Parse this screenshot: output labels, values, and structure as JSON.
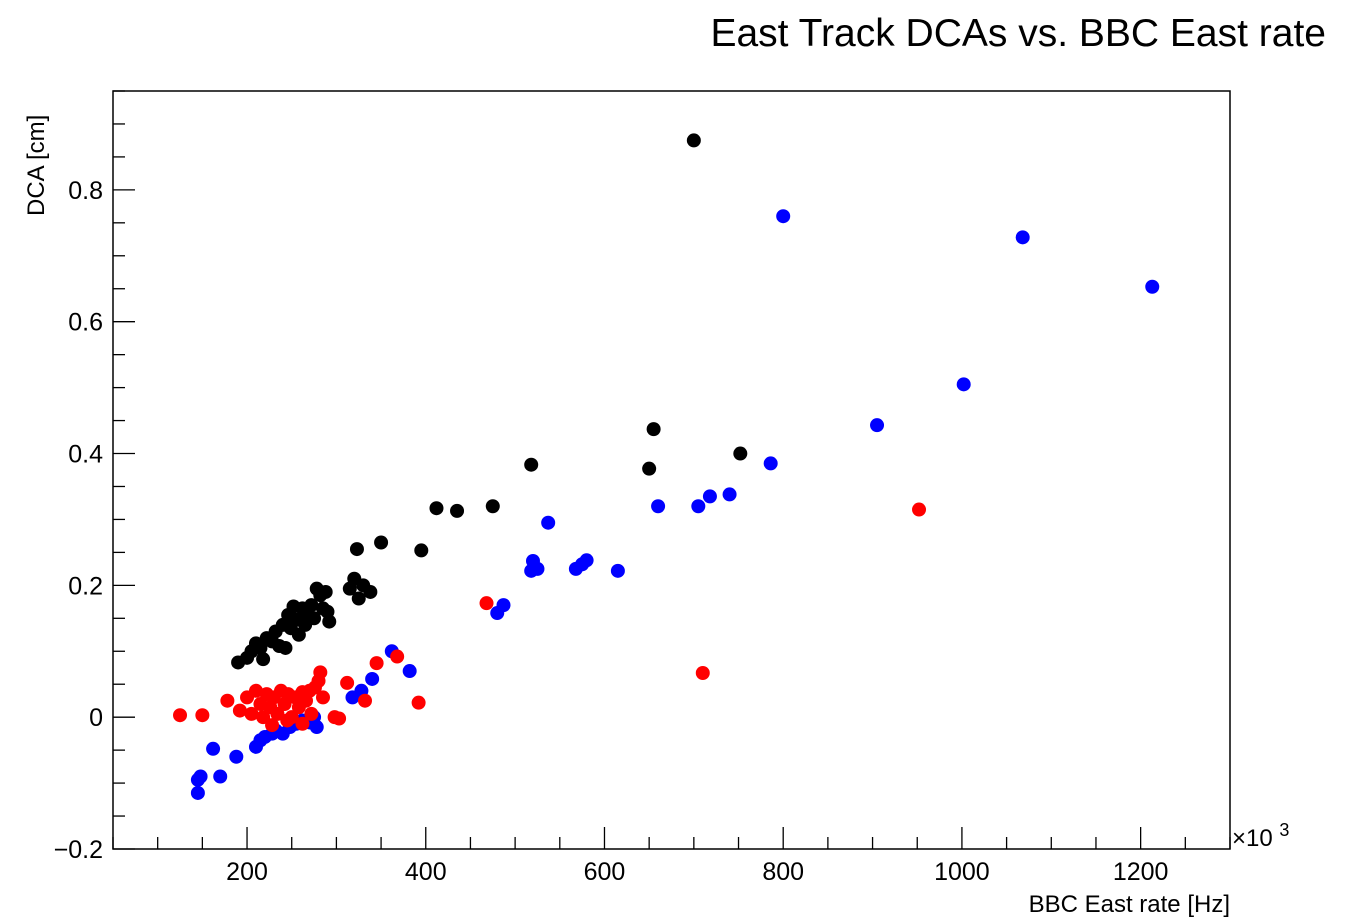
{
  "chart_data": {
    "type": "scatter",
    "title": "East Track DCAs vs. BBC East rate",
    "xlabel": "BBC East rate [Hz]",
    "ylabel": "DCA [cm]",
    "x_multiplier_label": "×10",
    "x_multiplier_exponent": "3",
    "xlim": [
      50,
      1300
    ],
    "ylim": [
      -0.2,
      0.95
    ],
    "x_ticks": [
      200,
      400,
      600,
      800,
      1000,
      1200
    ],
    "x_tick_labels": [
      "200",
      "400",
      "600",
      "800",
      "1000",
      "1200"
    ],
    "y_ticks": [
      -0.2,
      0,
      0.2,
      0.4,
      0.6,
      0.8
    ],
    "y_tick_labels": [
      "−0.2",
      "0",
      "0.2",
      "0.4",
      "0.6",
      "0.8"
    ],
    "grid": false,
    "series": [
      {
        "color": "#000000",
        "points": [
          [
            190,
            0.083
          ],
          [
            200,
            0.09
          ],
          [
            205,
            0.1
          ],
          [
            210,
            0.112
          ],
          [
            215,
            0.105
          ],
          [
            218,
            0.088
          ],
          [
            222,
            0.12
          ],
          [
            228,
            0.115
          ],
          [
            232,
            0.13
          ],
          [
            236,
            0.108
          ],
          [
            240,
            0.14
          ],
          [
            243,
            0.105
          ],
          [
            246,
            0.155
          ],
          [
            249,
            0.135
          ],
          [
            252,
            0.168
          ],
          [
            255,
            0.148
          ],
          [
            258,
            0.125
          ],
          [
            262,
            0.165
          ],
          [
            265,
            0.14
          ],
          [
            268,
            0.155
          ],
          [
            272,
            0.17
          ],
          [
            275,
            0.15
          ],
          [
            278,
            0.195
          ],
          [
            282,
            0.185
          ],
          [
            285,
            0.165
          ],
          [
            288,
            0.19
          ],
          [
            290,
            0.16
          ],
          [
            292,
            0.145
          ],
          [
            315,
            0.195
          ],
          [
            320,
            0.21
          ],
          [
            325,
            0.18
          ],
          [
            330,
            0.2
          ],
          [
            338,
            0.19
          ],
          [
            323,
            0.255
          ],
          [
            350,
            0.265
          ],
          [
            395,
            0.253
          ],
          [
            412,
            0.317
          ],
          [
            435,
            0.313
          ],
          [
            475,
            0.32
          ],
          [
            518,
            0.383
          ],
          [
            650,
            0.377
          ],
          [
            655,
            0.437
          ],
          [
            700,
            0.875
          ],
          [
            752,
            0.4
          ]
        ]
      },
      {
        "color": "#0000ff",
        "points": [
          [
            145,
            -0.115
          ],
          [
            145,
            -0.095
          ],
          [
            148,
            -0.09
          ],
          [
            162,
            -0.048
          ],
          [
            170,
            -0.09
          ],
          [
            188,
            -0.06
          ],
          [
            210,
            -0.045
          ],
          [
            215,
            -0.035
          ],
          [
            220,
            -0.03
          ],
          [
            228,
            -0.025
          ],
          [
            232,
            -0.02
          ],
          [
            240,
            -0.025
          ],
          [
            248,
            -0.015
          ],
          [
            255,
            -0.01
          ],
          [
            262,
            -0.005
          ],
          [
            270,
            -0.008
          ],
          [
            275,
            0.0
          ],
          [
            278,
            -0.015
          ],
          [
            318,
            0.03
          ],
          [
            328,
            0.04
          ],
          [
            340,
            0.058
          ],
          [
            362,
            0.1
          ],
          [
            382,
            0.07
          ],
          [
            480,
            0.158
          ],
          [
            487,
            0.17
          ],
          [
            518,
            0.222
          ],
          [
            520,
            0.237
          ],
          [
            525,
            0.225
          ],
          [
            537,
            0.295
          ],
          [
            568,
            0.225
          ],
          [
            575,
            0.232
          ],
          [
            580,
            0.238
          ],
          [
            615,
            0.222
          ],
          [
            660,
            0.32
          ],
          [
            705,
            0.32
          ],
          [
            718,
            0.335
          ],
          [
            740,
            0.338
          ],
          [
            786,
            0.385
          ],
          [
            800,
            0.76
          ],
          [
            905,
            0.443
          ],
          [
            1002,
            0.505
          ],
          [
            1068,
            0.728
          ],
          [
            1213,
            0.653
          ]
        ]
      },
      {
        "color": "#ff0000",
        "points": [
          [
            125,
            0.003
          ],
          [
            150,
            0.003
          ],
          [
            178,
            0.025
          ],
          [
            192,
            0.01
          ],
          [
            200,
            0.03
          ],
          [
            205,
            0.005
          ],
          [
            210,
            0.04
          ],
          [
            215,
            0.02
          ],
          [
            218,
            0.0
          ],
          [
            222,
            0.035
          ],
          [
            226,
            0.015
          ],
          [
            230,
            0.03
          ],
          [
            234,
            0.005
          ],
          [
            238,
            0.04
          ],
          [
            242,
            0.02
          ],
          [
            246,
            0.035
          ],
          [
            250,
            0.0
          ],
          [
            254,
            0.03
          ],
          [
            258,
            0.015
          ],
          [
            262,
            0.038
          ],
          [
            266,
            0.025
          ],
          [
            270,
            0.04
          ],
          [
            272,
            0.005
          ],
          [
            276,
            0.045
          ],
          [
            280,
            0.055
          ],
          [
            282,
            0.068
          ],
          [
            285,
            0.03
          ],
          [
            298,
            0.0
          ],
          [
            303,
            -0.002
          ],
          [
            312,
            0.052
          ],
          [
            332,
            0.025
          ],
          [
            345,
            0.082
          ],
          [
            368,
            0.092
          ],
          [
            392,
            0.022
          ],
          [
            468,
            0.173
          ],
          [
            710,
            0.067
          ],
          [
            952,
            0.315
          ],
          [
            262,
            -0.01
          ],
          [
            245,
            -0.005
          ],
          [
            228,
            -0.012
          ]
        ]
      }
    ]
  }
}
